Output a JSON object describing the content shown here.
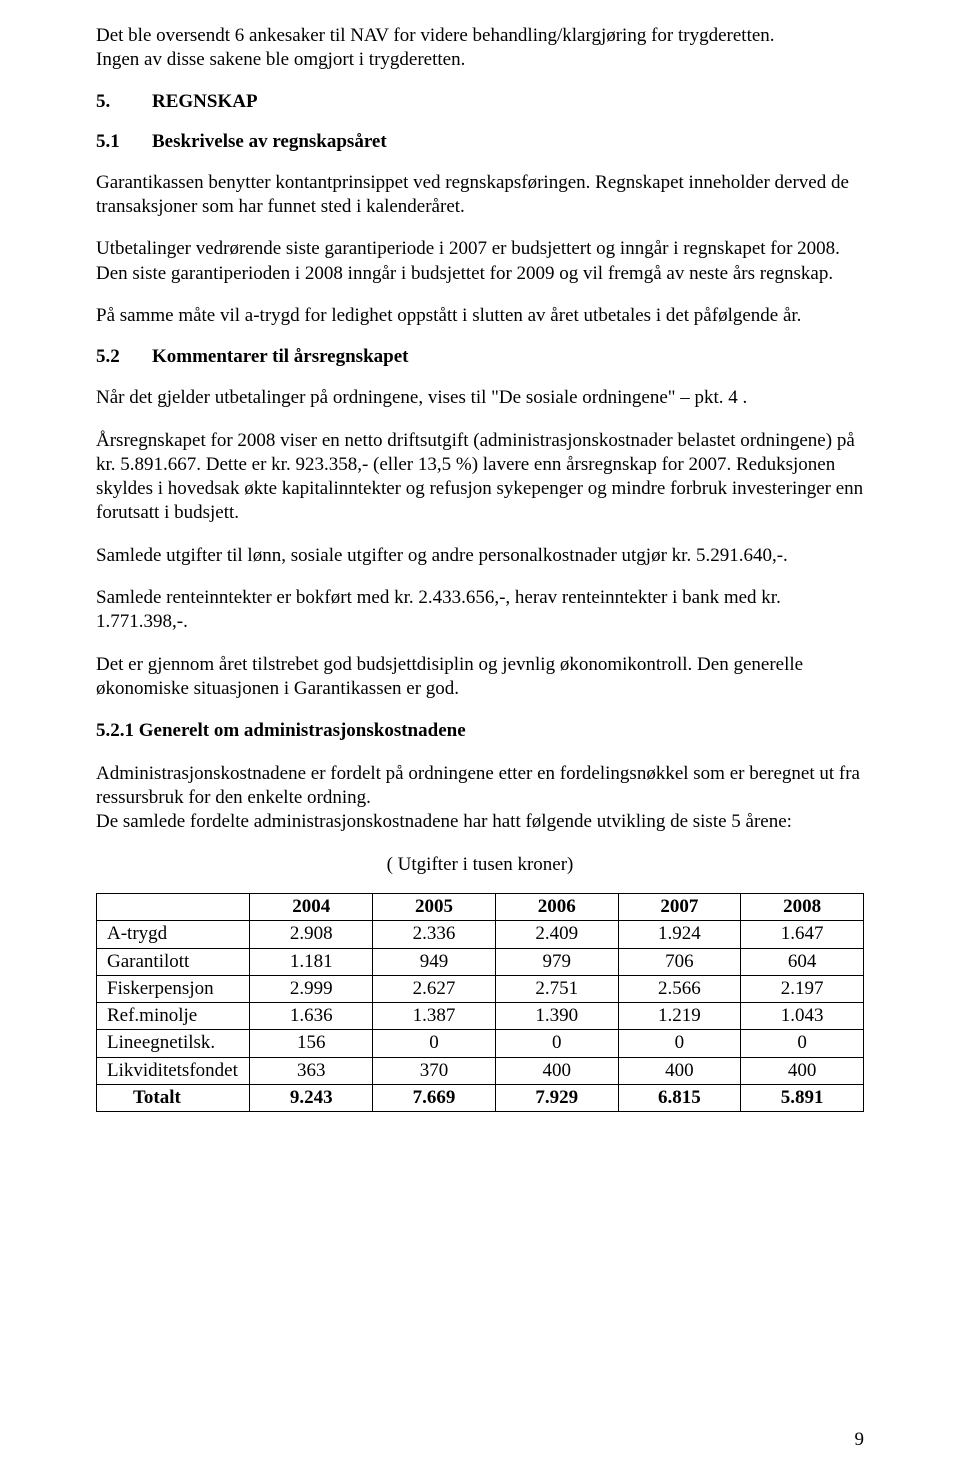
{
  "intro": {
    "p1a": "Det ble oversendt 6 ankesaker til NAV for videre behandling/klargjøring for trygderetten.",
    "p1b": "Ingen av disse sakene ble omgjort i trygderetten."
  },
  "sec5": {
    "num": "5.",
    "title": "REGNSKAP"
  },
  "sec51": {
    "num": "5.1",
    "title": "Beskrivelse av regnskapsåret",
    "p1": "Garantikassen benytter kontantprinsippet ved regnskapsføringen. Regnskapet inneholder derved de transaksjoner som har funnet sted i kalenderåret.",
    "p2": "Utbetalinger vedrørende siste garantiperiode i 2007 er budsjettert og inngår i regnskapet for 2008. Den siste garantiperioden i 2008 inngår i budsjettet for 2009 og vil fremgå av neste års regnskap.",
    "p3": "På samme måte vil a-trygd for ledighet oppstått i slutten av året utbetales i det påfølgende år."
  },
  "sec52": {
    "num": "5.2",
    "title": "Kommentarer til årsregnskapet",
    "p1": "Når det gjelder utbetalinger på ordningene, vises til \"De sosiale ordningene\" – pkt. 4 .",
    "p2": "Årsregnskapet for 2008 viser en netto driftsutgift (administrasjonskostnader belastet ordningene) på kr. 5.891.667. Dette er kr. 923.358,- (eller 13,5 %) lavere enn årsregnskap for 2007. Reduksjonen skyldes i hovedsak økte kapitalinntekter og refusjon sykepenger og mindre forbruk investeringer enn forutsatt i budsjett.",
    "p3": "Samlede utgifter til lønn, sosiale utgifter og andre personalkostnader utgjør kr. 5.291.640,-.",
    "p4": "Samlede renteinntekter er bokført med kr. 2.433.656,-, herav renteinntekter i bank med kr. 1.771.398,-.",
    "p5": "Det er gjennom året tilstrebet god budsjettdisiplin og jevnlig økonomikontroll.  Den generelle økonomiske situasjonen i Garantikassen er god."
  },
  "sec521": {
    "heading": "5.2.1  Generelt om administrasjonskostnadene",
    "p1a": "Administrasjonskostnadene er fordelt på ordningene etter en fordelingsnøkkel som er beregnet ut fra ressursbruk for den enkelte ordning.",
    "p1b": "De samlede fordelte administrasjonskostnadene har hatt følgende utvikling de siste 5 årene:"
  },
  "table": {
    "caption": "( Utgifter i tusen kroner)",
    "columns": [
      "",
      "2004",
      "2005",
      "2006",
      "2007",
      "2008"
    ],
    "col_widths_pct": [
      20,
      16,
      16,
      16,
      16,
      16
    ],
    "rows": [
      {
        "label": "A-trygd",
        "values": [
          "2.908",
          "2.336",
          "2.409",
          "1.924",
          "1.647"
        ]
      },
      {
        "label": "Garantilott",
        "values": [
          "1.181",
          "949",
          "979",
          "706",
          "604"
        ]
      },
      {
        "label": "Fiskerpensjon",
        "values": [
          "2.999",
          "2.627",
          "2.751",
          "2.566",
          "2.197"
        ]
      },
      {
        "label": "Ref.minolje",
        "values": [
          "1.636",
          "1.387",
          "1.390",
          "1.219",
          "1.043"
        ]
      },
      {
        "label": "Lineegnetilsk.",
        "values": [
          "156",
          "0",
          "0",
          "0",
          "0"
        ]
      },
      {
        "label": "Likviditetsfondet",
        "values": [
          "363",
          "370",
          "400",
          "400",
          "400"
        ]
      }
    ],
    "total": {
      "label": "Totalt",
      "values": [
        "9.243",
        "7.669",
        "7.929",
        "6.815",
        "5.891"
      ]
    }
  },
  "page_number": "9"
}
